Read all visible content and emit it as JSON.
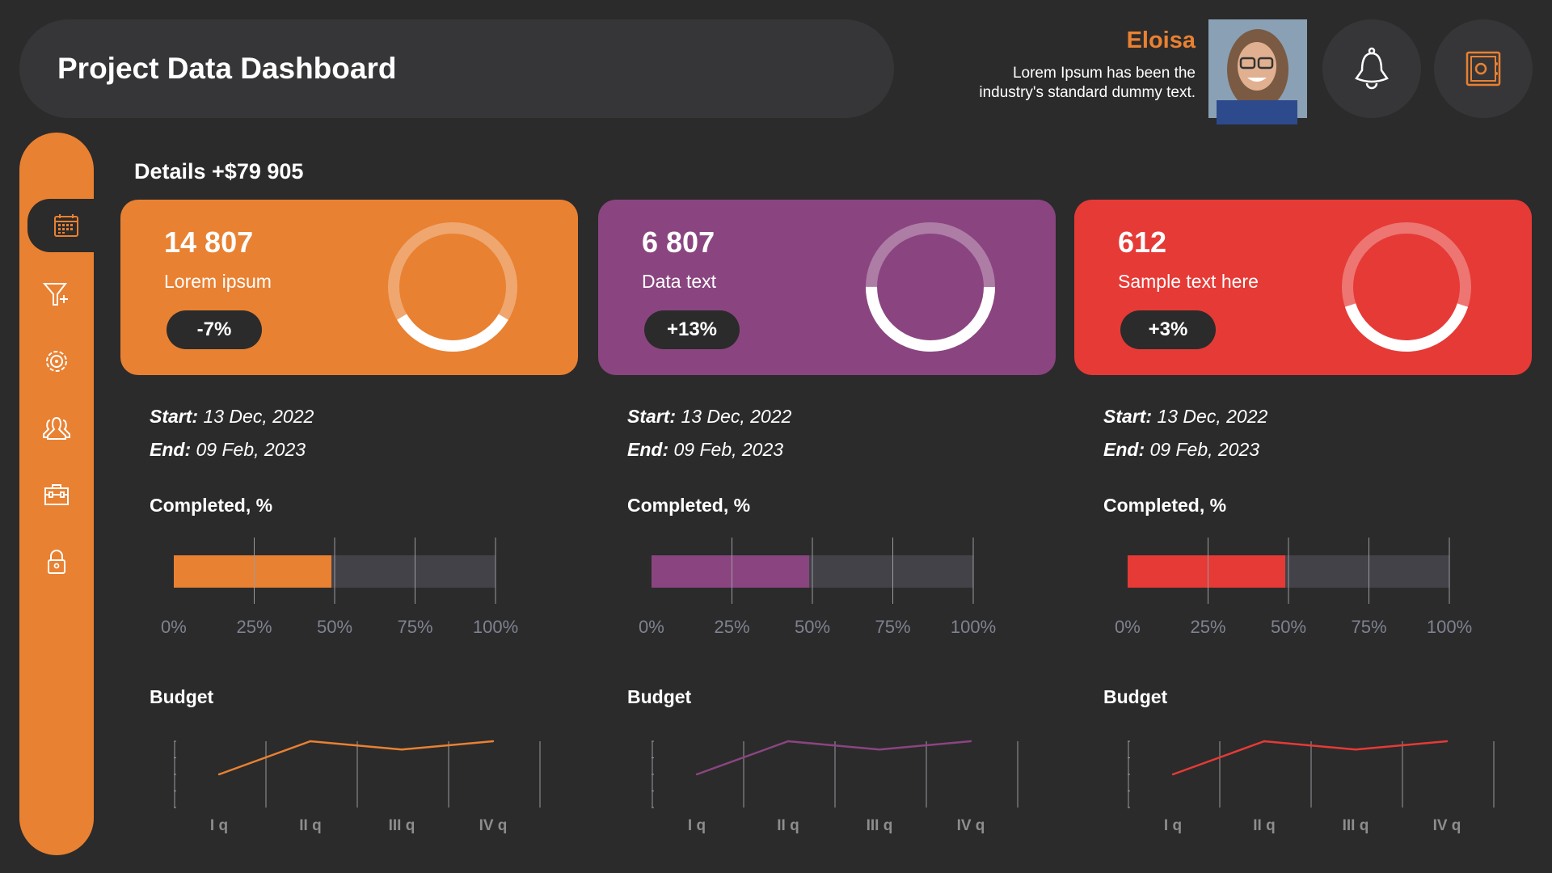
{
  "header": {
    "title": "Project Data Dashboard"
  },
  "user": {
    "name": "Eloisa",
    "bio_line1": "Lorem Ipsum has been the",
    "bio_line2": "industry's standard dummy text."
  },
  "actions": [
    {
      "icon": "bell-icon"
    },
    {
      "icon": "safe-icon"
    }
  ],
  "sidebar": {
    "items": [
      {
        "icon": "calendar-icon",
        "active": true
      },
      {
        "icon": "funnel-add-icon"
      },
      {
        "icon": "gear-wheel-icon"
      },
      {
        "icon": "team-icon"
      },
      {
        "icon": "briefcase-icon"
      },
      {
        "icon": "lock-icon"
      }
    ]
  },
  "details": {
    "title": "Details +$79 905"
  },
  "labels": {
    "start": "Start:",
    "end": "End:",
    "completed": "Completed, %",
    "budget": "Budget"
  },
  "colors": {
    "orange": "#E98132",
    "purple": "#8A4580",
    "red": "#E63A36",
    "background": "#2B2B2B"
  },
  "projects": [
    {
      "value": "14 807",
      "label": "Lorem ipsum",
      "change": "-7%",
      "color": "#E98132",
      "donut_fraction": 0.33,
      "start": "13 Dec, 2022",
      "end": "09 Feb, 2023"
    },
    {
      "value": "6 807",
      "label": "Data text",
      "change": "+13%",
      "color": "#8A4580",
      "donut_fraction": 0.5,
      "start": "13 Dec, 2022",
      "end": "09 Feb, 2023"
    },
    {
      "value": "612",
      "label": "Sample text here",
      "change": "+3%",
      "color": "#E63A36",
      "donut_fraction": 0.4,
      "start": "13 Dec, 2022",
      "end": "09 Feb, 2023"
    }
  ],
  "chart_data": [
    {
      "type": "bar",
      "title": "Completed, %",
      "orientation": "horizontal",
      "values": [
        49
      ],
      "xlim": [
        0,
        100
      ],
      "tick_labels": [
        "0%",
        "25%",
        "50%",
        "75%",
        "100%"
      ],
      "grid": true,
      "color": "#E98132"
    },
    {
      "type": "bar",
      "title": "Completed, %",
      "orientation": "horizontal",
      "values": [
        49
      ],
      "xlim": [
        0,
        100
      ],
      "tick_labels": [
        "0%",
        "25%",
        "50%",
        "75%",
        "100%"
      ],
      "grid": true,
      "color": "#8A4580"
    },
    {
      "type": "bar",
      "title": "Completed, %",
      "orientation": "horizontal",
      "values": [
        49
      ],
      "xlim": [
        0,
        100
      ],
      "tick_labels": [
        "0%",
        "25%",
        "50%",
        "75%",
        "100%"
      ],
      "grid": true,
      "color": "#E63A36"
    },
    {
      "type": "line",
      "title": "Budget",
      "categories": [
        "I q",
        "II q",
        "III q",
        "IV q"
      ],
      "values": [
        2,
        4,
        3.5,
        4
      ],
      "ylim": [
        0,
        4
      ],
      "grid": true,
      "color": "#E98132"
    },
    {
      "type": "line",
      "title": "Budget",
      "categories": [
        "I q",
        "II q",
        "III q",
        "IV q"
      ],
      "values": [
        2,
        4,
        3.5,
        4
      ],
      "ylim": [
        0,
        4
      ],
      "grid": true,
      "color": "#8A4580"
    },
    {
      "type": "line",
      "title": "Budget",
      "categories": [
        "I q",
        "II q",
        "III q",
        "IV q"
      ],
      "values": [
        2,
        4,
        3.5,
        4
      ],
      "ylim": [
        0,
        4
      ],
      "grid": true,
      "color": "#E63A36"
    }
  ]
}
